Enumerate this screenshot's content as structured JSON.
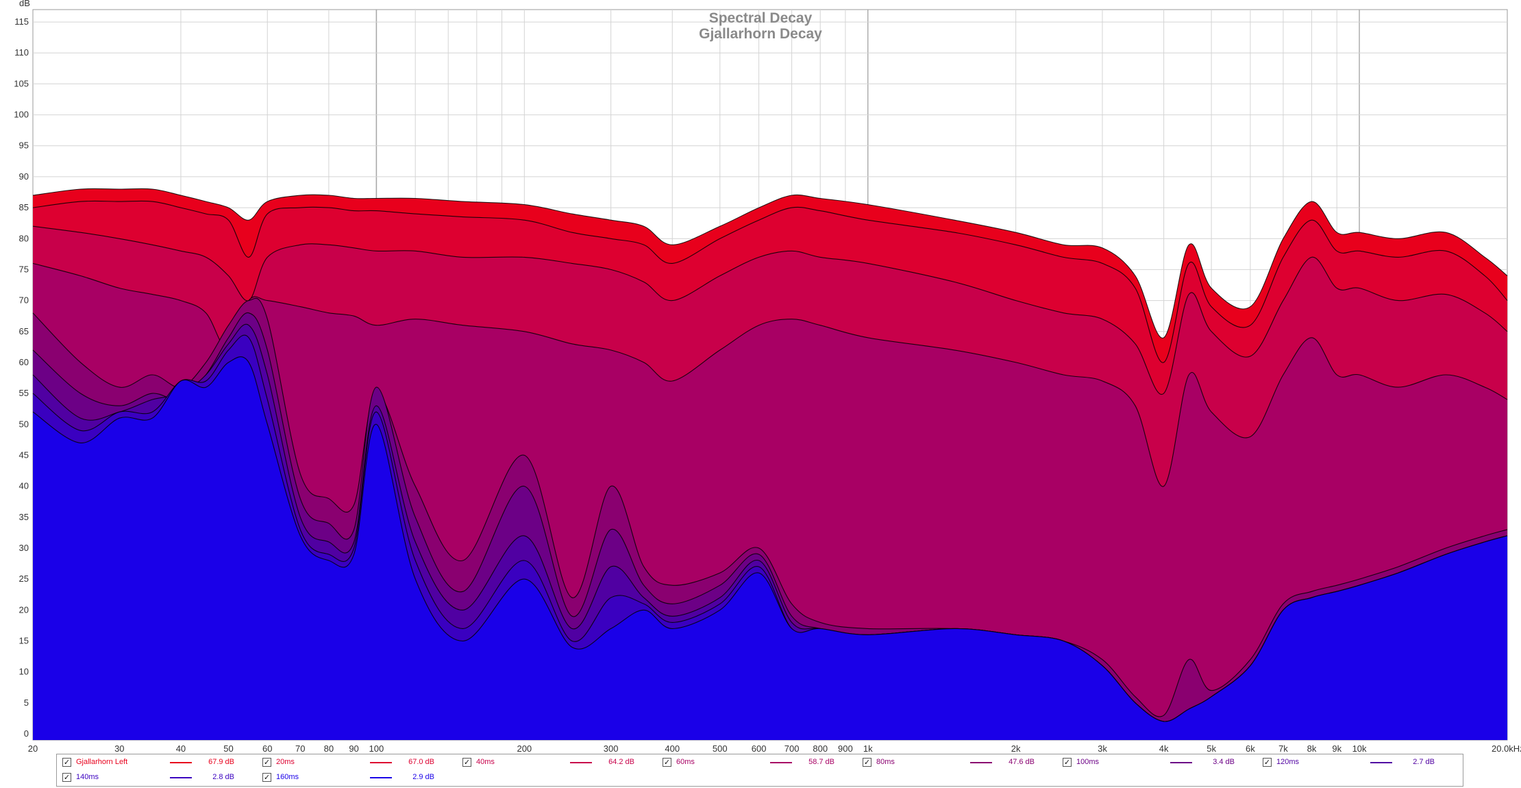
{
  "chart_data": {
    "type": "area",
    "title": "Spectral Decay",
    "subtitle": "Gjallarhorn Decay",
    "ylabel": "dB",
    "x_unit_label": "20.0kHz",
    "x_scale": "log",
    "xlim": [
      20,
      20000
    ],
    "ylim": [
      -1,
      117
    ],
    "grid": true,
    "legend_placement": "bottom",
    "y_ticks": [
      0,
      5,
      10,
      15,
      20,
      25,
      30,
      35,
      40,
      45,
      50,
      55,
      60,
      65,
      70,
      75,
      80,
      85,
      90,
      95,
      100,
      105,
      110,
      115
    ],
    "x_ticks": [
      {
        "v": 20,
        "label": "20"
      },
      {
        "v": 30,
        "label": "30"
      },
      {
        "v": 40,
        "label": "40"
      },
      {
        "v": 50,
        "label": "50"
      },
      {
        "v": 60,
        "label": "60"
      },
      {
        "v": 70,
        "label": "70"
      },
      {
        "v": 80,
        "label": "80"
      },
      {
        "v": 90,
        "label": "90"
      },
      {
        "v": 100,
        "label": "100"
      },
      {
        "v": 200,
        "label": "200"
      },
      {
        "v": 300,
        "label": "300"
      },
      {
        "v": 400,
        "label": "400"
      },
      {
        "v": 500,
        "label": "500"
      },
      {
        "v": 600,
        "label": "600"
      },
      {
        "v": 700,
        "label": "700"
      },
      {
        "v": 800,
        "label": "800"
      },
      {
        "v": 900,
        "label": "900"
      },
      {
        "v": 1000,
        "label": "1k"
      },
      {
        "v": 2000,
        "label": "2k"
      },
      {
        "v": 3000,
        "label": "3k"
      },
      {
        "v": 4000,
        "label": "4k"
      },
      {
        "v": 5000,
        "label": "5k"
      },
      {
        "v": 6000,
        "label": "6k"
      },
      {
        "v": 7000,
        "label": "7k"
      },
      {
        "v": 8000,
        "label": "8k"
      },
      {
        "v": 9000,
        "label": "9k"
      },
      {
        "v": 10000,
        "label": "10k"
      }
    ],
    "x": [
      20,
      25,
      30,
      35,
      40,
      45,
      50,
      55,
      60,
      70,
      80,
      90,
      100,
      120,
      150,
      200,
      250,
      300,
      350,
      400,
      500,
      600,
      700,
      800,
      1000,
      1500,
      2000,
      2500,
      3000,
      3500,
      4000,
      4500,
      5000,
      6000,
      7000,
      8000,
      9000,
      10000,
      12000,
      15000,
      18000,
      20000
    ],
    "series": [
      {
        "name": "Gjallarhorn Left",
        "color": "#e8001c",
        "legend_value": "67.9 dB",
        "values": [
          87,
          88,
          88,
          88,
          87,
          86,
          85,
          83,
          86,
          87,
          87,
          86.5,
          86.5,
          86.5,
          86,
          85.5,
          84,
          83,
          82,
          79,
          82,
          85,
          87,
          86.5,
          85.5,
          83,
          81,
          79,
          78.5,
          74,
          64,
          79,
          72,
          69,
          80,
          86,
          81,
          81,
          80,
          81,
          77,
          74
        ]
      },
      {
        "name": "20ms",
        "color": "#dd0030",
        "legend_value": "67.0 dB",
        "values": [
          85,
          86,
          86,
          86,
          85,
          84,
          83,
          77,
          84,
          85,
          85,
          84.5,
          84.5,
          84,
          83.5,
          83,
          81,
          80,
          79,
          76,
          80,
          83,
          85,
          84.5,
          83,
          81,
          79,
          77,
          76,
          72,
          60,
          76,
          69,
          66,
          77,
          83,
          78,
          78,
          77,
          78,
          74,
          70
        ]
      },
      {
        "name": "40ms",
        "color": "#c8004a",
        "legend_value": "64.2 dB",
        "values": [
          82,
          81,
          80,
          79,
          78,
          77,
          74,
          70,
          77,
          79,
          79,
          78.5,
          78,
          78,
          77,
          77,
          76,
          75,
          73,
          70,
          74,
          77,
          78,
          77,
          76,
          73,
          70,
          68,
          67,
          63,
          55,
          71,
          65,
          61,
          70,
          77,
          72,
          72,
          70,
          71,
          68,
          65
        ]
      },
      {
        "name": "60ms",
        "color": "#a80064",
        "legend_value": "58.7 dB",
        "values": [
          76,
          74,
          72,
          71,
          70,
          68,
          62,
          70,
          70,
          69,
          68,
          67.5,
          66,
          67,
          66,
          65,
          63,
          62,
          60,
          57,
          62,
          66,
          67,
          66,
          64,
          62,
          60,
          58,
          57,
          53,
          40,
          58,
          52,
          48,
          58,
          64,
          58,
          58,
          56,
          58,
          56,
          54
        ]
      },
      {
        "name": "80ms",
        "color": "#8a0070",
        "legend_value": "47.6 dB",
        "values": [
          68,
          60,
          56,
          58,
          56,
          60,
          66,
          70,
          67,
          42,
          38,
          37,
          55,
          40,
          28,
          45,
          22,
          40,
          27,
          24,
          26,
          30,
          21,
          18,
          17,
          17,
          16,
          15,
          12,
          6,
          3,
          12,
          7,
          12,
          21,
          23,
          24,
          25,
          27,
          30,
          32,
          33
        ]
      },
      {
        "name": "100ms",
        "color": "#6c0086",
        "legend_value": "3.4 dB",
        "values": [
          62,
          55,
          53,
          55,
          54,
          58,
          64,
          68,
          62,
          38,
          34,
          33,
          56,
          35,
          23,
          40,
          19,
          33,
          24,
          21,
          24,
          29,
          19,
          17,
          16,
          17,
          16,
          15,
          11,
          5,
          2,
          4,
          6,
          11,
          20,
          22,
          23,
          24,
          26,
          29,
          31,
          32
        ]
      },
      {
        "name": "120ms",
        "color": "#5000a2",
        "legend_value": "2.7 dB",
        "values": [
          58,
          51,
          52,
          54,
          55,
          58,
          63,
          66,
          58,
          35,
          31,
          31,
          53,
          31,
          20,
          32,
          17,
          27,
          22,
          19,
          22,
          28,
          18,
          17,
          16,
          17,
          16,
          15,
          11,
          5,
          2,
          4,
          6,
          11,
          20,
          22,
          23,
          24,
          26,
          29,
          31,
          32
        ]
      },
      {
        "name": "140ms",
        "color": "#3a00c0",
        "legend_value": "2.8 dB",
        "values": [
          55,
          49,
          52,
          52,
          57,
          57,
          62,
          64,
          54,
          33,
          29,
          30,
          52,
          28,
          17,
          28,
          15,
          22,
          21,
          18,
          21,
          27,
          17,
          17,
          16,
          17,
          16,
          15,
          11,
          5,
          2,
          4,
          6,
          11,
          20,
          22,
          23,
          24,
          26,
          29,
          31,
          32
        ]
      },
      {
        "name": "160ms",
        "color": "#1a00e8",
        "legend_value": "2.9 dB",
        "values": [
          52,
          47,
          51,
          51,
          57,
          56,
          60,
          60,
          50,
          32,
          28,
          29,
          50,
          25,
          15,
          25,
          14,
          17,
          20,
          17,
          20,
          26,
          17,
          17,
          16,
          17,
          16,
          15,
          11,
          5,
          2,
          4,
          6,
          11,
          20,
          22,
          23,
          24,
          26,
          29,
          31,
          32
        ]
      }
    ]
  }
}
